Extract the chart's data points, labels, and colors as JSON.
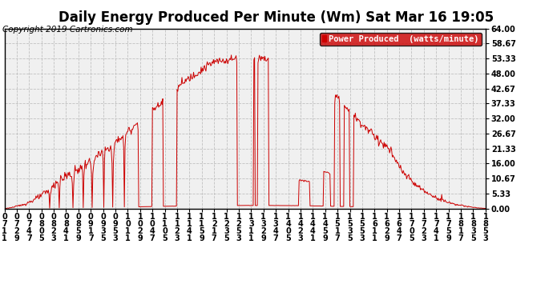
{
  "title": "Daily Energy Produced Per Minute (Wm) Sat Mar 16 19:05",
  "copyright": "Copyright 2019 Cartronics.com",
  "legend_label": "Power Produced  (watts/minute)",
  "legend_bg": "#cc0000",
  "legend_text_color": "#ffffff",
  "line_color": "#cc0000",
  "bg_color": "#ffffff",
  "plot_bg_color": "#f0f0f0",
  "grid_color": "#bbbbbb",
  "grid_style": "--",
  "ylim": [
    0,
    64.0
  ],
  "yticks": [
    0.0,
    5.33,
    10.67,
    16.0,
    21.33,
    26.67,
    32.0,
    37.33,
    42.67,
    48.0,
    53.33,
    58.67,
    64.0
  ],
  "ytick_labels": [
    "0.00",
    "5.33",
    "10.67",
    "16.00",
    "21.33",
    "26.67",
    "32.00",
    "37.33",
    "42.67",
    "48.00",
    "53.33",
    "58.67",
    "64.00"
  ],
  "title_fontsize": 12,
  "copyright_fontsize": 7.5,
  "tick_fontsize": 7,
  "legend_fontsize": 7.5
}
